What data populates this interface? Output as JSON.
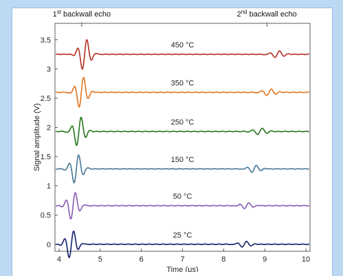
{
  "chart_data": {
    "type": "line",
    "xlabel": "Time (μs)",
    "ylabel": "Signal amplitude (V)",
    "xlim": [
      3.9,
      10.1
    ],
    "ylim": [
      -0.12,
      3.78
    ],
    "xticks": [
      4,
      5,
      6,
      7,
      8,
      9,
      10
    ],
    "yticks": [
      0,
      0.5,
      1,
      1.5,
      2,
      2.5,
      3,
      3.5
    ],
    "grid": false,
    "annotations": [
      {
        "label_sup": "st",
        "label_pre": "1",
        "label_post": " backwall echo",
        "x": 4.55
      },
      {
        "label_sup": "nd",
        "label_pre": "2",
        "label_post": " backwall echo",
        "x": 9.05
      }
    ],
    "series": [
      {
        "name": "450 °C",
        "offset": 3.25,
        "color": "#b8362b",
        "echo1": 4.62,
        "echo2": 9.3,
        "amp1": 0.28,
        "amp2": 0.06
      },
      {
        "name": "350 °C",
        "offset": 2.6,
        "color": "#e07a2b",
        "echo1": 4.54,
        "echo2": 9.1,
        "amp1": 0.28,
        "amp2": 0.06
      },
      {
        "name": "250 °C",
        "offset": 1.93,
        "color": "#2c7a22",
        "echo1": 4.48,
        "echo2": 8.88,
        "amp1": 0.27,
        "amp2": 0.06
      },
      {
        "name": "150 °C",
        "offset": 1.29,
        "color": "#4c7c9c",
        "echo1": 4.42,
        "echo2": 8.74,
        "amp1": 0.27,
        "amp2": 0.06
      },
      {
        "name": "50 °C",
        "offset": 0.66,
        "color": "#8a61b8",
        "echo1": 4.34,
        "echo2": 8.56,
        "amp1": 0.25,
        "amp2": 0.05
      },
      {
        "name": "25 °C",
        "offset": 0.0,
        "color": "#1c2870",
        "echo1": 4.3,
        "echo2": 8.5,
        "amp1": 0.25,
        "amp2": 0.05
      }
    ]
  }
}
